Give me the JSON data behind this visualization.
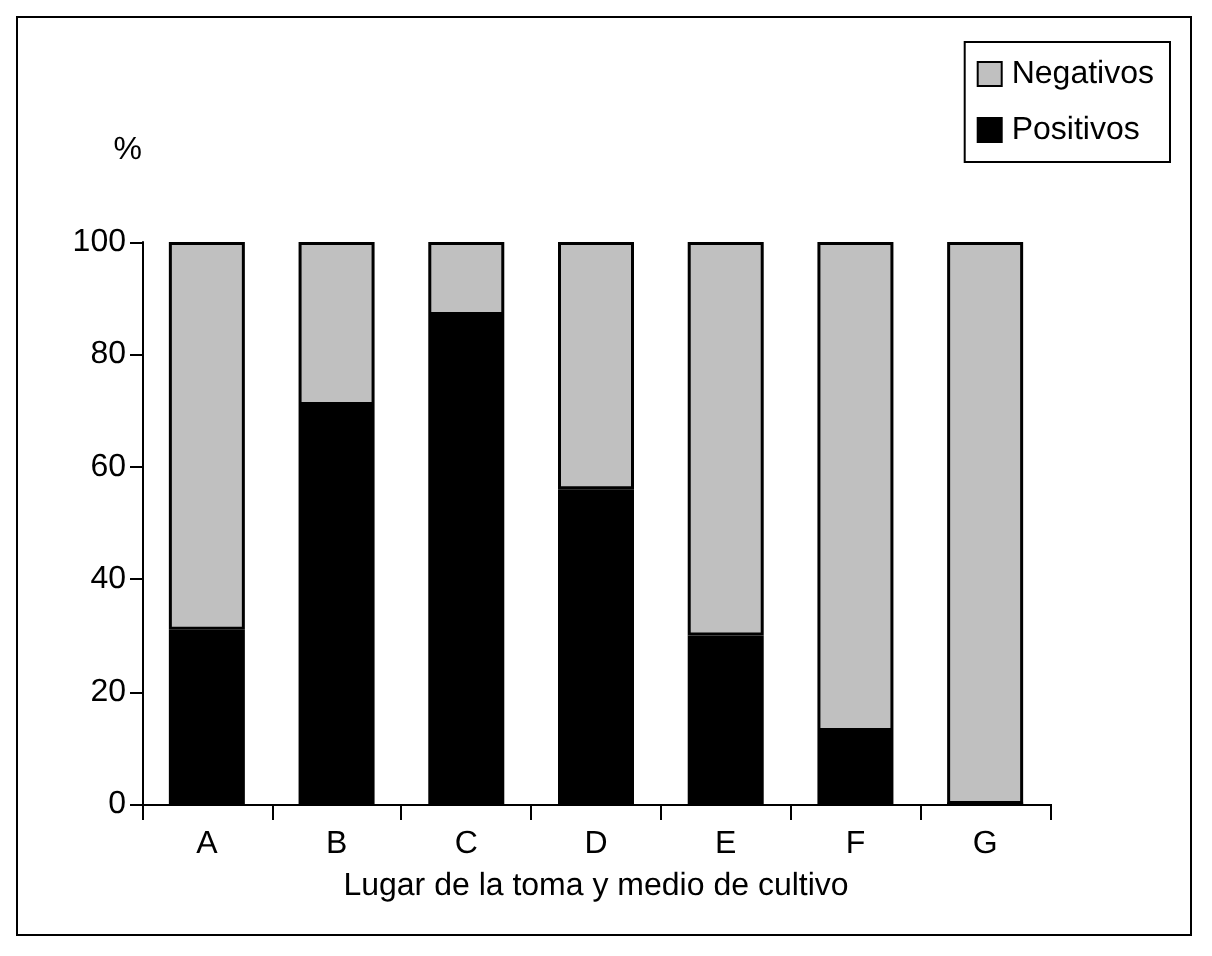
{
  "chart_data": {
    "type": "bar",
    "stacked": true,
    "xlabel": "Lugar de la toma y medio de cultivo",
    "ylabel": "%",
    "categories": [
      "A",
      "B",
      "C",
      "D",
      "E",
      "F",
      "G"
    ],
    "series": [
      {
        "name": "Positivos",
        "color": "#000000",
        "values": [
          31,
          71,
          87,
          56,
          30,
          13,
          0
        ]
      },
      {
        "name": "Negativos",
        "color": "#c0c0c0",
        "values": [
          69,
          29,
          13,
          44,
          70,
          87,
          100
        ]
      }
    ],
    "ylim": [
      0,
      100
    ],
    "yticks": [
      0,
      20,
      40,
      60,
      80,
      100
    ],
    "grid": false,
    "legend": "top right"
  }
}
